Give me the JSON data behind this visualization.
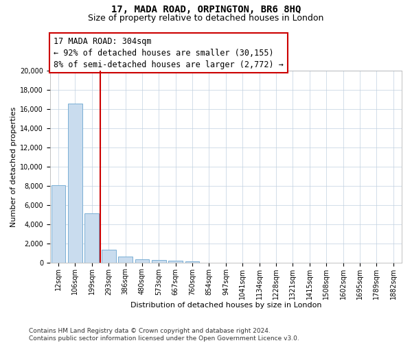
{
  "title": "17, MADA ROAD, ORPINGTON, BR6 8HQ",
  "subtitle": "Size of property relative to detached houses in London",
  "xlabel": "Distribution of detached houses by size in London",
  "ylabel": "Number of detached properties",
  "categories": [
    "12sqm",
    "106sqm",
    "199sqm",
    "293sqm",
    "386sqm",
    "480sqm",
    "573sqm",
    "667sqm",
    "760sqm",
    "854sqm",
    "947sqm",
    "1041sqm",
    "1134sqm",
    "1228sqm",
    "1321sqm",
    "1415sqm",
    "1508sqm",
    "1602sqm",
    "1695sqm",
    "1789sqm",
    "1882sqm"
  ],
  "values": [
    8050,
    16600,
    5100,
    1350,
    600,
    350,
    250,
    200,
    150,
    0,
    0,
    0,
    0,
    0,
    0,
    0,
    0,
    0,
    0,
    0,
    0
  ],
  "bar_color": "#c9dcee",
  "bar_edge_color": "#7aafd4",
  "vline_color": "#cc0000",
  "vline_x_index": 2,
  "annotation_line1": "17 MADA ROAD: 304sqm",
  "annotation_line2": "← 92% of detached houses are smaller (30,155)",
  "annotation_line3": "8% of semi-detached houses are larger (2,772) →",
  "annotation_box_facecolor": "white",
  "annotation_box_edgecolor": "#cc0000",
  "ylim": [
    0,
    20000
  ],
  "yticks": [
    0,
    2000,
    4000,
    6000,
    8000,
    10000,
    12000,
    14000,
    16000,
    18000,
    20000
  ],
  "grid_color": "#c0d0e0",
  "footnote_line1": "Contains HM Land Registry data © Crown copyright and database right 2024.",
  "footnote_line2": "Contains public sector information licensed under the Open Government Licence v3.0.",
  "title_fontsize": 10,
  "subtitle_fontsize": 9,
  "xlabel_fontsize": 8,
  "ylabel_fontsize": 8,
  "footnote_fontsize": 6.5,
  "tick_fontsize": 7,
  "annotation_fontsize": 8.5
}
